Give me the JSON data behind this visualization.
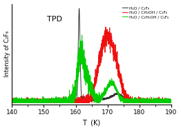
{
  "title": "TPD",
  "xlabel": "T  (K)",
  "ylabel": "Intensity of C₂F₆",
  "xlim": [
    140,
    190
  ],
  "legend": [
    {
      "label": "H₂O / C₂F₆",
      "color": "#303030"
    },
    {
      "label": "H₂O / CH₃OH / C₂F₆",
      "color": "#ee1111"
    },
    {
      "label": "H₂O / C₂H₅OH / C₂F₆",
      "color": "#00cc00"
    }
  ],
  "xticks": [
    140,
    150,
    160,
    170,
    180,
    190
  ],
  "background": "#ffffff",
  "fig_bg": "#ffffff",
  "linewidth": 0.7
}
